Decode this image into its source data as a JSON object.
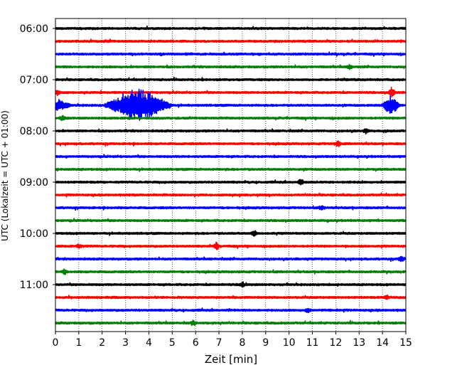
{
  "chart_data": {
    "type": "line",
    "title": "",
    "xlabel": "Zeit  [min]",
    "ylabel": "UTC (Lokalzeit = UTC + 01:00)",
    "xlim": [
      0,
      15
    ],
    "x_ticks": [
      "0",
      "1",
      "2",
      "3",
      "4",
      "5",
      "6",
      "7",
      "8",
      "9",
      "10",
      "11",
      "12",
      "13",
      "14",
      "15"
    ],
    "y_ticks": [
      {
        "label": "06:00",
        "row": 0
      },
      {
        "label": "07:00",
        "row": 4
      },
      {
        "label": "08:00",
        "row": 8
      },
      {
        "label": "09:00",
        "row": 12
      },
      {
        "label": "10:00",
        "row": 16
      },
      {
        "label": "11:00",
        "row": 20
      }
    ],
    "row_minutes": 15,
    "grid": "vertical dotted at each minute",
    "colors": [
      "#000000",
      "#ff0000",
      "#0000ff",
      "#008000"
    ],
    "traces": [
      {
        "start": "06:00",
        "events": []
      },
      {
        "start": "06:15",
        "events": []
      },
      {
        "start": "06:30",
        "events": []
      },
      {
        "start": "06:45",
        "events": [
          {
            "t": 12.6,
            "amp": 0.3
          }
        ]
      },
      {
        "start": "07:00",
        "events": []
      },
      {
        "start": "07:15",
        "events": [
          {
            "t": 0.1,
            "amp": 0.4
          },
          {
            "t": 14.4,
            "amp": 0.7
          }
        ]
      },
      {
        "start": "07:30",
        "events": [
          {
            "t": 3.55,
            "amp": 2.3,
            "dur": 1.5
          },
          {
            "t": 14.35,
            "amp": 1.3,
            "dur": 0.4
          },
          {
            "t": 0.2,
            "amp": 0.7,
            "dur": 0.5
          }
        ]
      },
      {
        "start": "07:45",
        "events": [
          {
            "t": 0.3,
            "amp": 0.3
          }
        ]
      },
      {
        "start": "08:00",
        "events": [
          {
            "t": 13.3,
            "amp": 0.3
          }
        ]
      },
      {
        "start": "08:15",
        "events": [
          {
            "t": 12.1,
            "amp": 0.4
          }
        ]
      },
      {
        "start": "08:30",
        "events": []
      },
      {
        "start": "08:45",
        "events": []
      },
      {
        "start": "09:00",
        "events": [
          {
            "t": 10.5,
            "amp": 0.4
          }
        ]
      },
      {
        "start": "09:15",
        "events": []
      },
      {
        "start": "09:30",
        "events": [
          {
            "t": 11.4,
            "amp": 0.3
          }
        ]
      },
      {
        "start": "09:45",
        "events": []
      },
      {
        "start": "10:00",
        "events": [
          {
            "t": 8.5,
            "amp": 0.4
          }
        ]
      },
      {
        "start": "10:15",
        "events": [
          {
            "t": 6.9,
            "amp": 0.5
          },
          {
            "t": 1.0,
            "amp": 0.3
          }
        ]
      },
      {
        "start": "10:30",
        "events": [
          {
            "t": 14.8,
            "amp": 0.4
          }
        ]
      },
      {
        "start": "10:45",
        "events": [
          {
            "t": 0.4,
            "amp": 0.3
          }
        ]
      },
      {
        "start": "11:00",
        "events": [
          {
            "t": 8.0,
            "amp": 0.3
          }
        ]
      },
      {
        "start": "11:15",
        "events": [
          {
            "t": 14.2,
            "amp": 0.3
          }
        ]
      },
      {
        "start": "11:30",
        "events": [
          {
            "t": 10.8,
            "amp": 0.3
          }
        ]
      },
      {
        "start": "11:45",
        "events": [
          {
            "t": 5.9,
            "amp": 0.3
          }
        ]
      }
    ]
  }
}
